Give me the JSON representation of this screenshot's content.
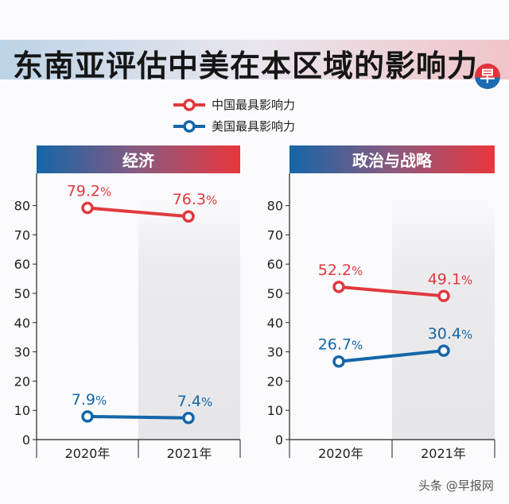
{
  "title": "东南亚评估中美在本区域的影响力",
  "logo_text": "早",
  "legend": [
    {
      "label": "中国最具影响力",
      "color": "#e0393e"
    },
    {
      "label": "美国最具影响力",
      "color": "#1466a8"
    }
  ],
  "watermark": "头条 @早报网",
  "colors": {
    "china": "#e0393e",
    "usa": "#1466a8",
    "header_left": "#1466a8",
    "header_right": "#e8363c"
  },
  "chart_data": [
    {
      "type": "line",
      "title": "经济",
      "categories": [
        "2020年",
        "2021年"
      ],
      "ylim": [
        0,
        90
      ],
      "yticks": [
        0,
        10,
        20,
        30,
        40,
        50,
        60,
        70,
        80
      ],
      "series": [
        {
          "name": "中国最具影响力",
          "values": [
            79.2,
            76.3
          ],
          "labels": [
            "79.2%",
            "76.3%"
          ]
        },
        {
          "name": "美国最具影响力",
          "values": [
            7.9,
            7.4
          ],
          "labels": [
            "7.9%",
            "7.4%"
          ]
        }
      ]
    },
    {
      "type": "line",
      "title": "政治与战略",
      "categories": [
        "2020年",
        "2021年"
      ],
      "ylim": [
        0,
        90
      ],
      "yticks": [
        0,
        10,
        20,
        30,
        40,
        50,
        60,
        70,
        80
      ],
      "series": [
        {
          "name": "中国最具影响力",
          "values": [
            52.2,
            49.1
          ],
          "labels": [
            "52.2%",
            "49.1%"
          ]
        },
        {
          "name": "美国最具影响力",
          "values": [
            26.7,
            30.4
          ],
          "labels": [
            "26.7%",
            "30.4%"
          ]
        }
      ]
    }
  ]
}
